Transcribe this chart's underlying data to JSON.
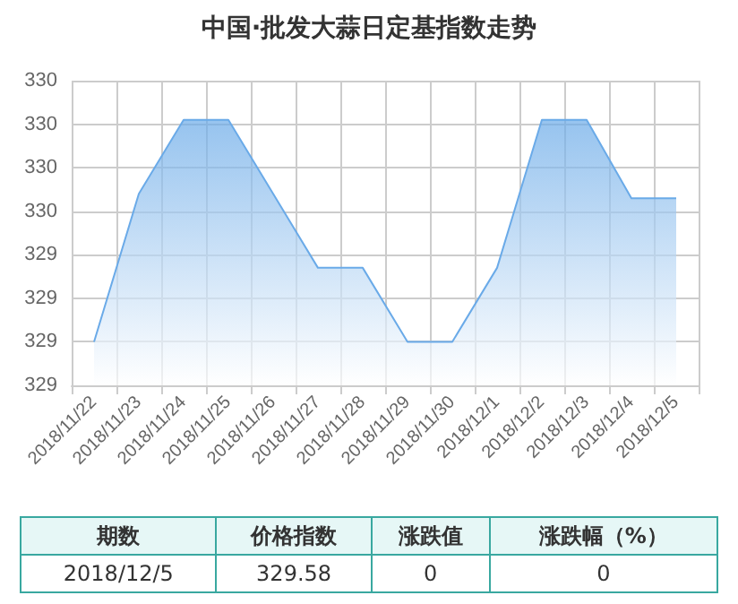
{
  "chart_data": {
    "type": "area",
    "title": "中国·批发大蒜日定基指数走势",
    "categories": [
      "2018/11/22",
      "2018/11/23",
      "2018/11/24",
      "2018/11/25",
      "2018/11/26",
      "2018/11/27",
      "2018/11/28",
      "2018/11/29",
      "2018/11/30",
      "2018/12/1",
      "2018/12/2",
      "2018/12/3",
      "2018/12/4",
      "2018/12/5"
    ],
    "series": [
      {
        "color": "#6aaae8",
        "values": [
          329.25,
          329.59,
          329.76,
          329.76,
          329.59,
          329.42,
          329.42,
          329.25,
          329.25,
          329.42,
          329.76,
          329.76,
          329.58,
          329.58
        ]
      }
    ],
    "ylim": [
      329.15,
      329.85
    ],
    "yticks": [
      {
        "value": 329.15,
        "label": "329"
      },
      {
        "value": 329.25,
        "label": "329"
      },
      {
        "value": 329.35,
        "label": "329"
      },
      {
        "value": 329.45,
        "label": "329"
      },
      {
        "value": 329.55,
        "label": "330"
      },
      {
        "value": 329.65,
        "label": "330"
      },
      {
        "value": 329.75,
        "label": "330"
      },
      {
        "value": 329.85,
        "label": "330"
      }
    ],
    "grid": true,
    "marker": "none",
    "annotations": [
      "期数",
      "价格指数",
      "涨跌值",
      "涨跌幅（%）",
      "2018/12/5",
      "329.58",
      "0",
      "0"
    ]
  }
}
